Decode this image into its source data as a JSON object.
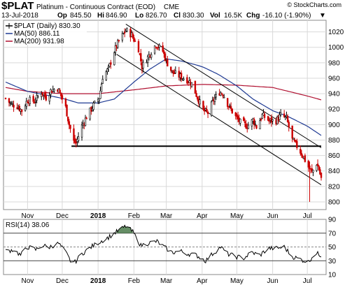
{
  "header": {
    "symbol": "$PLAT",
    "description": "Platinum - Continuous Contract (EOD)",
    "exchange": "CME",
    "watermark": "© StockCharts.com",
    "date": "13-Jul-2018",
    "op_label": "Op",
    "op_value": "845.50",
    "hi_label": "Hi",
    "hi_value": "846.90",
    "lo_label": "Lo",
    "lo_value": "826.70",
    "cl_label": "Cl",
    "cl_value": "830.30",
    "vol_label": "Vol",
    "vol_value": "16.5K",
    "chg_label": "Chg",
    "chg_value": "-16.10 (-1.90%)",
    "chg_arrow": "▼"
  },
  "legend": {
    "price": "$PLAT (Daily) 830.30",
    "ma50": "MA(50) 886.11",
    "ma200": "MA(200) 931.98"
  },
  "rsi_legend": "RSI(14) 38.06",
  "colors": {
    "up": "#000000",
    "down": "#cc0000",
    "ma50": "#1f3a93",
    "ma200": "#b01030",
    "trend": "#000000",
    "rsi": "#000000",
    "rsi_fill": "#4a7a4a",
    "grid": "#d9d9d9"
  },
  "chart_data": [
    {
      "type": "candlestick",
      "ylim": [
        790,
        1035
      ],
      "y_ticks": [
        "800",
        "820",
        "840",
        "860",
        "880",
        "900",
        "920",
        "940",
        "960",
        "980",
        "1000",
        "1020"
      ],
      "x_ticks": [
        "Nov",
        "Dec",
        "2018",
        "Feb",
        "Mar",
        "Apr",
        "May",
        "Jun",
        "Jul"
      ],
      "x_tick_dates": [
        "2017-11-01",
        "2017-12-01",
        "2018-01-01",
        "2018-02-01",
        "2018-03-01",
        "2018-04-01",
        "2018-05-01",
        "2018-06-01",
        "2018-07-01"
      ],
      "date_range": [
        "2017-10-13",
        "2018-07-13"
      ],
      "grid": true,
      "price_anchors": [
        [
          "2017-10-13",
          934
        ],
        [
          "2017-10-18",
          926
        ],
        [
          "2017-10-23",
          924
        ],
        [
          "2017-10-27",
          918
        ],
        [
          "2017-11-01",
          932
        ],
        [
          "2017-11-07",
          930
        ],
        [
          "2017-11-13",
          942
        ],
        [
          "2017-11-17",
          935
        ],
        [
          "2017-11-21",
          944
        ],
        [
          "2017-11-27",
          947
        ],
        [
          "2017-11-30",
          937
        ],
        [
          "2017-12-04",
          922
        ],
        [
          "2017-12-07",
          900
        ],
        [
          "2017-12-11",
          878
        ],
        [
          "2017-12-13",
          876
        ],
        [
          "2017-12-18",
          898
        ],
        [
          "2017-12-22",
          910
        ],
        [
          "2017-12-28",
          925
        ],
        [
          "2018-01-02",
          935
        ],
        [
          "2018-01-05",
          962
        ],
        [
          "2018-01-10",
          972
        ],
        [
          "2018-01-15",
          995
        ],
        [
          "2018-01-19",
          1008
        ],
        [
          "2018-01-25",
          1022
        ],
        [
          "2018-01-30",
          1016
        ],
        [
          "2018-02-05",
          998
        ],
        [
          "2018-02-08",
          975
        ],
        [
          "2018-02-14",
          990
        ],
        [
          "2018-02-20",
          1004
        ],
        [
          "2018-02-26",
          995
        ],
        [
          "2018-03-01",
          982
        ],
        [
          "2018-03-06",
          968
        ],
        [
          "2018-03-12",
          963
        ],
        [
          "2018-03-19",
          958
        ],
        [
          "2018-03-23",
          953
        ],
        [
          "2018-03-28",
          935
        ],
        [
          "2018-04-02",
          918
        ],
        [
          "2018-04-06",
          915
        ],
        [
          "2018-04-11",
          932
        ],
        [
          "2018-04-16",
          942
        ],
        [
          "2018-04-19",
          940
        ],
        [
          "2018-04-24",
          924
        ],
        [
          "2018-04-30",
          910
        ],
        [
          "2018-05-04",
          903
        ],
        [
          "2018-05-10",
          898
        ],
        [
          "2018-05-15",
          906
        ],
        [
          "2018-05-18",
          897
        ],
        [
          "2018-05-23",
          912
        ],
        [
          "2018-05-29",
          905
        ],
        [
          "2018-06-04",
          905
        ],
        [
          "2018-06-08",
          912
        ],
        [
          "2018-06-13",
          908
        ],
        [
          "2018-06-18",
          880
        ],
        [
          "2018-06-22",
          872
        ],
        [
          "2018-06-27",
          860
        ],
        [
          "2018-07-02",
          845
        ],
        [
          "2018-07-05",
          838
        ],
        [
          "2018-07-09",
          850
        ],
        [
          "2018-07-11",
          842
        ],
        [
          "2018-07-13",
          830
        ]
      ],
      "ma50_anchors": [
        [
          "2017-10-13",
          955
        ],
        [
          "2017-11-01",
          943
        ],
        [
          "2017-12-01",
          934
        ],
        [
          "2017-12-15",
          928
        ],
        [
          "2018-01-01",
          928
        ],
        [
          "2018-01-15",
          933
        ],
        [
          "2018-02-01",
          955
        ],
        [
          "2018-02-15",
          972
        ],
        [
          "2018-03-01",
          985
        ],
        [
          "2018-03-15",
          982
        ],
        [
          "2018-04-01",
          975
        ],
        [
          "2018-04-15",
          965
        ],
        [
          "2018-05-01",
          950
        ],
        [
          "2018-05-15",
          933
        ],
        [
          "2018-06-01",
          918
        ],
        [
          "2018-06-15",
          910
        ],
        [
          "2018-07-01",
          898
        ],
        [
          "2018-07-13",
          886
        ]
      ],
      "ma200_anchors": [
        [
          "2017-10-13",
          948
        ],
        [
          "2017-11-01",
          943
        ],
        [
          "2017-12-01",
          940
        ],
        [
          "2018-01-01",
          940
        ],
        [
          "2018-02-01",
          945
        ],
        [
          "2018-03-01",
          950
        ],
        [
          "2018-04-01",
          952
        ],
        [
          "2018-05-01",
          951
        ],
        [
          "2018-06-01",
          948
        ],
        [
          "2018-07-01",
          937
        ],
        [
          "2018-07-13",
          932
        ]
      ],
      "trendlines": [
        {
          "from": [
            "2018-01-25",
            1030
          ],
          "to": [
            "2018-07-13",
            870
          ]
        },
        {
          "from": [
            "2018-01-17",
            991
          ],
          "to": [
            "2018-07-13",
            822
          ]
        },
        {
          "from": [
            "2017-12-09",
            872
          ],
          "to": [
            "2018-07-13",
            872
          ]
        }
      ]
    },
    {
      "type": "line",
      "name": "RSI(14)",
      "ylim": [
        10,
        90
      ],
      "y_ticks": [
        "10",
        "30",
        "50",
        "70",
        "90"
      ],
      "reference_lines": [
        30,
        50,
        70
      ],
      "x_ticks": [
        "Nov",
        "Dec",
        "2018",
        "Feb",
        "Mar",
        "Apr",
        "May",
        "Jun",
        "Jul"
      ],
      "rsi_anchors": [
        [
          "2017-10-13",
          44
        ],
        [
          "2017-10-20",
          46
        ],
        [
          "2017-10-26",
          38
        ],
        [
          "2017-11-01",
          50
        ],
        [
          "2017-11-08",
          46
        ],
        [
          "2017-11-14",
          52
        ],
        [
          "2017-11-20",
          50
        ],
        [
          "2017-11-28",
          55
        ],
        [
          "2017-12-04",
          42
        ],
        [
          "2017-12-08",
          30
        ],
        [
          "2017-12-12",
          28
        ],
        [
          "2017-12-18",
          40
        ],
        [
          "2017-12-26",
          50
        ],
        [
          "2018-01-03",
          58
        ],
        [
          "2018-01-10",
          64
        ],
        [
          "2018-01-17",
          72
        ],
        [
          "2018-01-25",
          80
        ],
        [
          "2018-01-31",
          72
        ],
        [
          "2018-02-07",
          52
        ],
        [
          "2018-02-14",
          56
        ],
        [
          "2018-02-21",
          58
        ],
        [
          "2018-02-27",
          50
        ],
        [
          "2018-03-06",
          42
        ],
        [
          "2018-03-13",
          44
        ],
        [
          "2018-03-20",
          40
        ],
        [
          "2018-03-27",
          38
        ],
        [
          "2018-04-04",
          30
        ],
        [
          "2018-04-10",
          40
        ],
        [
          "2018-04-17",
          50
        ],
        [
          "2018-04-23",
          40
        ],
        [
          "2018-04-30",
          36
        ],
        [
          "2018-05-07",
          34
        ],
        [
          "2018-05-14",
          42
        ],
        [
          "2018-05-21",
          38
        ],
        [
          "2018-05-28",
          48
        ],
        [
          "2018-06-04",
          48
        ],
        [
          "2018-06-11",
          50
        ],
        [
          "2018-06-18",
          36
        ],
        [
          "2018-06-25",
          32
        ],
        [
          "2018-07-02",
          28
        ],
        [
          "2018-07-06",
          38
        ],
        [
          "2018-07-10",
          40
        ],
        [
          "2018-07-13",
          38
        ]
      ]
    }
  ]
}
